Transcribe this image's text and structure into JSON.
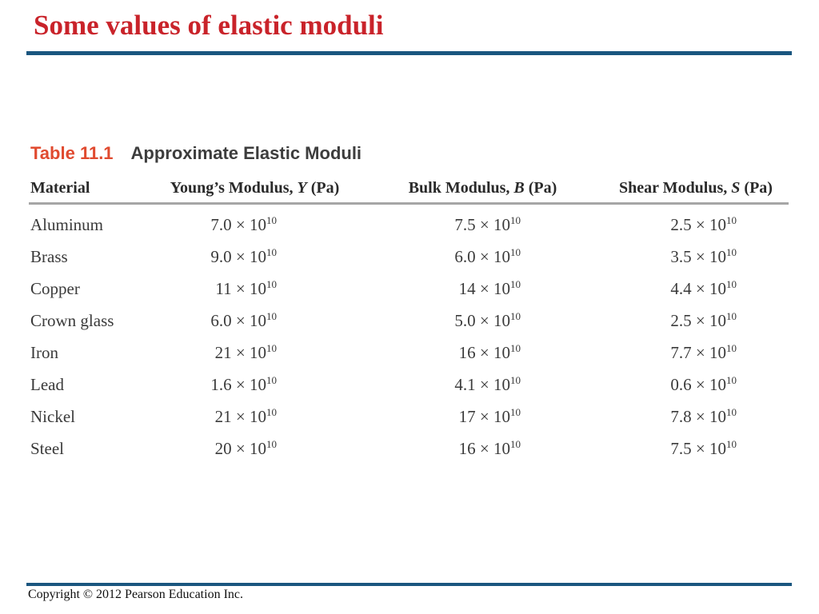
{
  "slide": {
    "title": "Some values of elastic moduli",
    "footer": "Copyright © 2012 Pearson Education Inc.",
    "colors": {
      "title_red": "#c9232a",
      "rule_blue": "#1a567f",
      "table_label_red": "#e04a2f",
      "caption_gray": "#3d3d3d",
      "header_text": "#2a2a2a",
      "body_text": "#3a3a3a",
      "rule_gray": "#a6a6a6"
    }
  },
  "table": {
    "label": "Table 11.1",
    "title": "Approximate Elastic Moduli",
    "columns": [
      {
        "prefix": "Material",
        "symbol": "",
        "suffix": ""
      },
      {
        "prefix": "Young’s Modulus, ",
        "symbol": "Y",
        "suffix": " (Pa)"
      },
      {
        "prefix": "Bulk Modulus, ",
        "symbol": "B",
        "suffix": " (Pa)"
      },
      {
        "prefix": "Shear Modulus, ",
        "symbol": "S",
        "suffix": " (Pa)"
      }
    ],
    "rows": [
      {
        "material": "Aluminum",
        "young": "7.0 × 10^10",
        "bulk": "7.5 × 10^10",
        "shear": "2.5 × 10^10"
      },
      {
        "material": "Brass",
        "young": "9.0 × 10^10",
        "bulk": "6.0 × 10^10",
        "shear": "3.5 × 10^10"
      },
      {
        "material": "Copper",
        "young": "11 × 10^10",
        "bulk": "14 × 10^10",
        "shear": "4.4 × 10^10"
      },
      {
        "material": "Crown glass",
        "young": "6.0 × 10^10",
        "bulk": "5.0 × 10^10",
        "shear": "2.5 × 10^10"
      },
      {
        "material": "Iron",
        "young": "21 × 10^10",
        "bulk": "16 × 10^10",
        "shear": "7.7 × 10^10"
      },
      {
        "material": "Lead",
        "young": "1.6 × 10^10",
        "bulk": "4.1 × 10^10",
        "shear": "0.6 × 10^10"
      },
      {
        "material": "Nickel",
        "young": "21 × 10^10",
        "bulk": "17 × 10^10",
        "shear": "7.8 × 10^10"
      },
      {
        "material": "Steel",
        "young": "20 × 10^10",
        "bulk": "16 × 10^10",
        "shear": "7.5 × 10^10"
      }
    ]
  },
  "chart_data": {
    "type": "table",
    "title": "Table 11.1 Approximate Elastic Moduli",
    "columns": [
      "Material",
      "Young's Modulus, Y (Pa)",
      "Bulk Modulus, B (Pa)",
      "Shear Modulus, S (Pa)"
    ],
    "unit_exponent": "×10^10",
    "rows": [
      [
        "Aluminum",
        7.0,
        7.5,
        2.5
      ],
      [
        "Brass",
        9.0,
        6.0,
        3.5
      ],
      [
        "Copper",
        11,
        14,
        4.4
      ],
      [
        "Crown glass",
        6.0,
        5.0,
        2.5
      ],
      [
        "Iron",
        21,
        16,
        7.7
      ],
      [
        "Lead",
        1.6,
        4.1,
        0.6
      ],
      [
        "Nickel",
        21,
        17,
        7.8
      ],
      [
        "Steel",
        20,
        16,
        7.5
      ]
    ]
  }
}
